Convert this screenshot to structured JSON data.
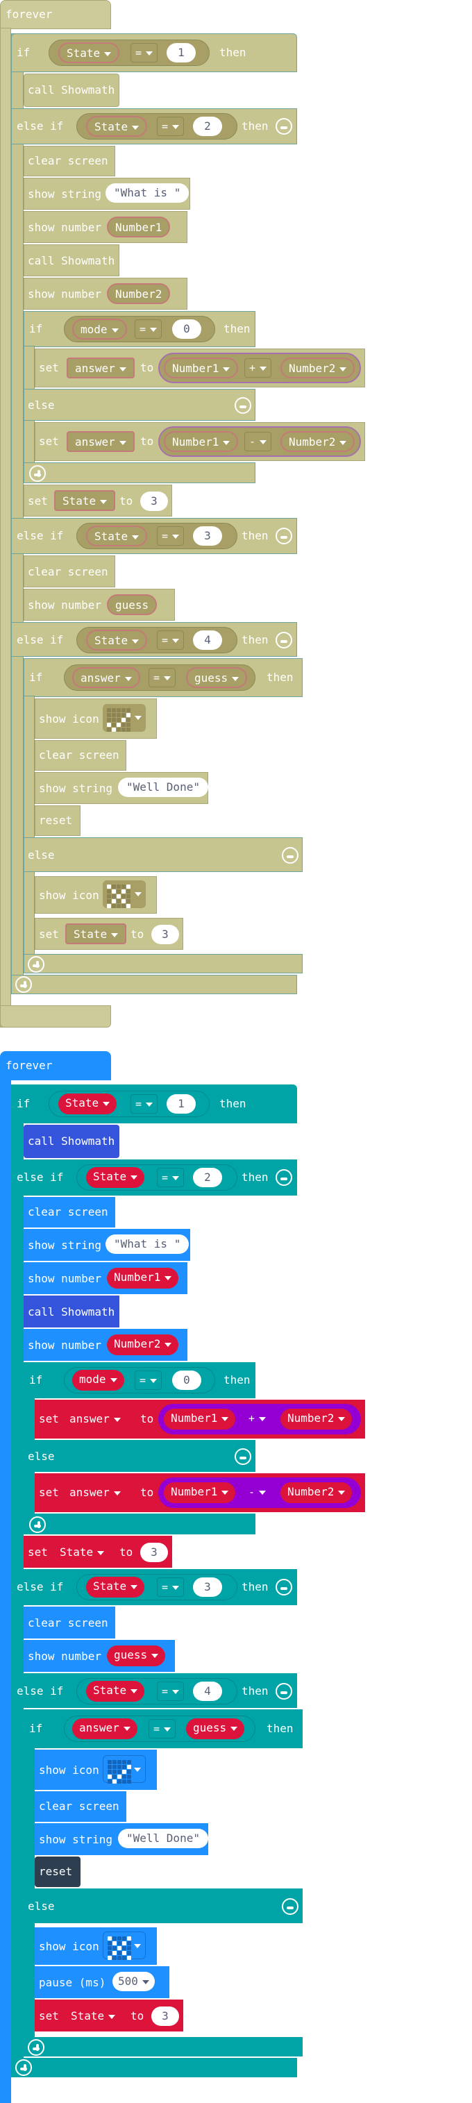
{
  "labels": {
    "forever": "forever",
    "if": "if",
    "else_if": "else if",
    "else": "else",
    "then": "then",
    "call": "call",
    "set": "set",
    "to": "to",
    "show_string": "show string",
    "show_number": "show number",
    "show_icon": "show icon",
    "clear_screen": "clear screen",
    "reset": "reset",
    "pause_ms": "pause (ms)"
  },
  "values": {
    "state_var": "State",
    "mode_var": "mode",
    "answer_var": "answer",
    "guess_var": "guess",
    "number1_var": "Number1",
    "number2_var": "Number2",
    "function_name": "Showmath",
    "eq": "=",
    "plus": "+",
    "minus": "-",
    "n0": "0",
    "n1": "1",
    "n2": "2",
    "n3": "3",
    "n4": "4",
    "n500": "500",
    "what_is": "\"What is \"",
    "well_done": "\"Well Done\""
  },
  "colors": {
    "plain_loop": "#cdcb9a",
    "plain_block": "#c6c48f",
    "plain_var": "#a79f65",
    "loops": "#1e90ff",
    "logic": "#00a4a6",
    "functions": "#3455db",
    "variables": "#dc143c",
    "math": "#9400d3",
    "game": "#2c3e50"
  },
  "icons": {
    "remove": "minus-circle-icon",
    "add": "plus-circle-icon",
    "dropdown": "caret-down-icon",
    "led_diagonal": "led-diagonal-icon",
    "led_x": "led-x-icon"
  }
}
